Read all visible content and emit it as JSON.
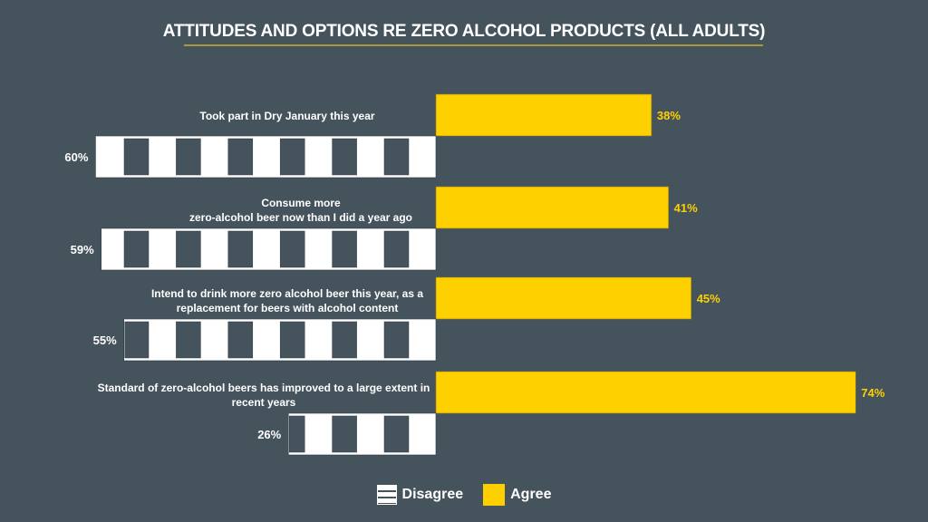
{
  "chart_data": {
    "type": "bar",
    "orientation": "horizontal-diverging",
    "title": "ATTITUDES AND OPTIONS RE ZERO ALCOHOL PRODUCTS (ALL ADULTS)",
    "xlabel": "",
    "ylabel": "",
    "grid": false,
    "legend_position": "bottom-center",
    "categories": [
      "Took part in Dry January this year",
      "Consume more\nzero-alcohol beer now than I did a year ago",
      "Intend to drink more zero alcohol beer this year, as a\nreplacement for beers with alcohol content",
      "Standard of zero-alcohol beers has improved to a large extent in\nrecent years"
    ],
    "series": [
      {
        "name": "Disagree",
        "values": [
          60,
          59,
          55,
          26
        ],
        "labels": [
          "60%",
          "59%",
          "55%",
          "26%"
        ],
        "color": "#ffffff",
        "pattern": "vertical-stripes"
      },
      {
        "name": "Agree",
        "values": [
          38,
          41,
          45,
          74
        ],
        "labels": [
          "38%",
          "41%",
          "45%",
          "74%"
        ],
        "color": "#ffd000"
      }
    ],
    "unit": "%"
  },
  "colors": {
    "background": "#45535d",
    "agree": "#ffd000",
    "disagree": "#ffffff",
    "stripe": "#45535d",
    "title_rule": "#a89a3a",
    "agree_label": "#ffd000",
    "disagree_label": "#ffffff"
  },
  "legend": {
    "disagree_label": "Disagree",
    "agree_label": "Agree"
  }
}
